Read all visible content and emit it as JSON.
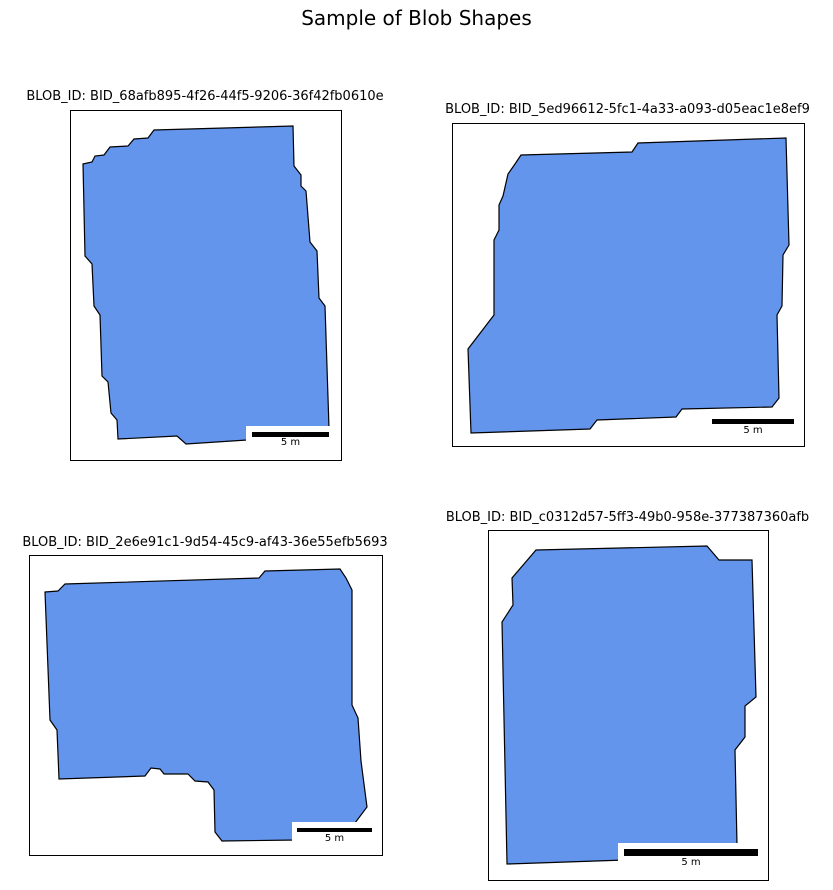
{
  "title": "Sample of Blob Shapes",
  "fill_color": "#6495ED",
  "edge_color": "#000000",
  "panels": [
    {
      "label": "BLOB_ID: BID_68afb895-4f26-44f5-9206-36f42fb0610e",
      "scale_label": "5 m"
    },
    {
      "label": "BLOB_ID: BID_5ed96612-5fc1-4a33-a093-d05eac1e8ef9",
      "scale_label": "5 m"
    },
    {
      "label": "BLOB_ID: BID_2e6e91c1-9d54-45c9-af43-36e55efb5693",
      "scale_label": "5 m"
    },
    {
      "label": "BLOB_ID: BID_c0312d57-5ff3-49b0-958e-377387360afb",
      "scale_label": "5 m"
    }
  ]
}
